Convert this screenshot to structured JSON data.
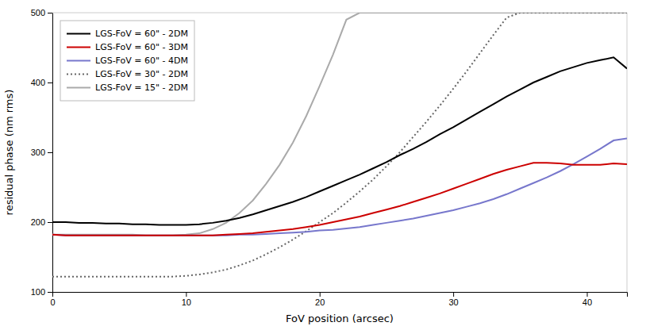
{
  "chart_data": {
    "type": "line",
    "xlabel": "FoV position (arcsec)",
    "ylabel": "residual phase (nm rms)",
    "xlim": [
      0,
      43
    ],
    "ylim": [
      100,
      500
    ],
    "xticks": [
      0,
      10,
      20,
      30,
      40
    ],
    "yticks": [
      100,
      200,
      300,
      400,
      500
    ],
    "legend": "upper left",
    "x": [
      0,
      1,
      2,
      3,
      4,
      5,
      6,
      7,
      8,
      9,
      10,
      11,
      12,
      13,
      14,
      15,
      16,
      17,
      18,
      19,
      20,
      21,
      22,
      23,
      24,
      25,
      26,
      27,
      28,
      29,
      30,
      31,
      32,
      33,
      34,
      35,
      36,
      37,
      38,
      39,
      40,
      41,
      42,
      43
    ],
    "series": [
      {
        "name": "LGS-FoV = 60\" - 2DM",
        "color": "#000000",
        "line_style": "solid",
        "values": [
          200,
          200,
          199,
          199,
          198,
          198,
          197,
          197,
          196,
          196,
          196,
          197,
          199,
          202,
          206,
          211,
          217,
          223,
          229,
          236,
          244,
          252,
          260,
          268,
          277,
          286,
          296,
          305,
          315,
          326,
          336,
          347,
          358,
          369,
          380,
          390,
          400,
          408,
          416,
          422,
          428,
          432,
          436,
          420
        ]
      },
      {
        "name": "LGS-FoV = 60\" - 3DM",
        "color": "#cc0000",
        "line_style": "solid",
        "values": [
          182,
          181,
          181,
          181,
          181,
          181,
          181,
          181,
          181,
          181,
          181,
          181,
          181,
          182,
          183,
          184,
          186,
          188,
          190,
          193,
          196,
          200,
          204,
          208,
          213,
          218,
          223,
          229,
          235,
          241,
          248,
          255,
          262,
          269,
          275,
          280,
          285,
          285,
          284,
          282,
          282,
          282,
          284,
          283
        ]
      },
      {
        "name": "LGS-FoV = 60\" - 4DM",
        "color": "#7777cc",
        "line_style": "solid",
        "values": [
          182,
          181,
          181,
          181,
          181,
          181,
          181,
          181,
          181,
          181,
          181,
          181,
          181,
          181,
          182,
          182,
          183,
          184,
          185,
          186,
          188,
          189,
          191,
          193,
          196,
          199,
          202,
          205,
          209,
          213,
          217,
          222,
          227,
          233,
          240,
          248,
          256,
          264,
          273,
          283,
          294,
          305,
          317,
          320
        ]
      },
      {
        "name": "LGS-FoV = 30\" - 2DM",
        "color": "#666666",
        "line_style": "dotted",
        "values": [
          122,
          122,
          122,
          122,
          122,
          122,
          122,
          122,
          122,
          122,
          123,
          125,
          128,
          132,
          138,
          145,
          154,
          164,
          175,
          187,
          200,
          213,
          228,
          244,
          261,
          280,
          300,
          322,
          344,
          367,
          391,
          416,
          442,
          468,
          493,
          500,
          500,
          500,
          500,
          500,
          500,
          500,
          500,
          500
        ]
      },
      {
        "name": "LGS-FoV = 15\" - 2DM",
        "color": "#aaaaaa",
        "line_style": "solid",
        "values": [
          182,
          182,
          182,
          182,
          182,
          182,
          182,
          181,
          181,
          181,
          182,
          184,
          190,
          199,
          213,
          231,
          255,
          282,
          314,
          352,
          395,
          440,
          490,
          500,
          500,
          500,
          500,
          500,
          500,
          500,
          500,
          500,
          500,
          500,
          500,
          500,
          500,
          500,
          500,
          500,
          500,
          500,
          500,
          500
        ]
      }
    ]
  }
}
